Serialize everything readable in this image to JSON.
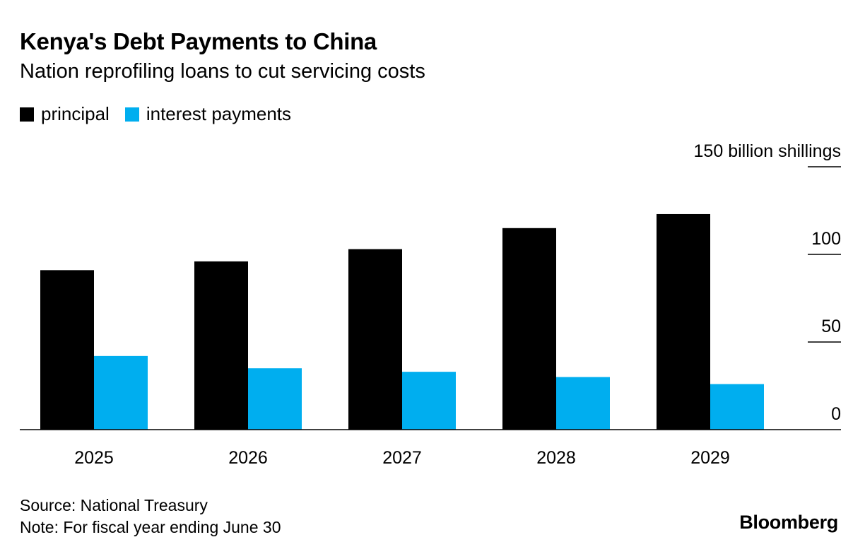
{
  "chart_data": {
    "type": "bar",
    "title": "Kenya's Debt Payments to China",
    "subtitle": "Nation reprofiling loans to cut servicing costs",
    "categories": [
      "2025",
      "2026",
      "2027",
      "2028",
      "2029"
    ],
    "series": [
      {
        "name": "principal",
        "color": "#000000",
        "values": [
          91,
          96,
          103,
          115,
          123
        ]
      },
      {
        "name": "interest payments",
        "color": "#00aeef",
        "values": [
          42,
          35,
          33,
          30,
          26
        ]
      }
    ],
    "ylim": [
      0,
      150
    ],
    "yticks": [
      {
        "value": 0,
        "label": "0"
      },
      {
        "value": 50,
        "label": "50"
      },
      {
        "value": 100,
        "label": "100"
      },
      {
        "value": 150,
        "label": "150 billion shillings"
      }
    ],
    "legend_position": "top-left",
    "y_axis_side": "right"
  },
  "footer": {
    "source": "Source: National Treasury",
    "note": "Note: For fiscal year ending June 30",
    "brand": "Bloomberg"
  }
}
